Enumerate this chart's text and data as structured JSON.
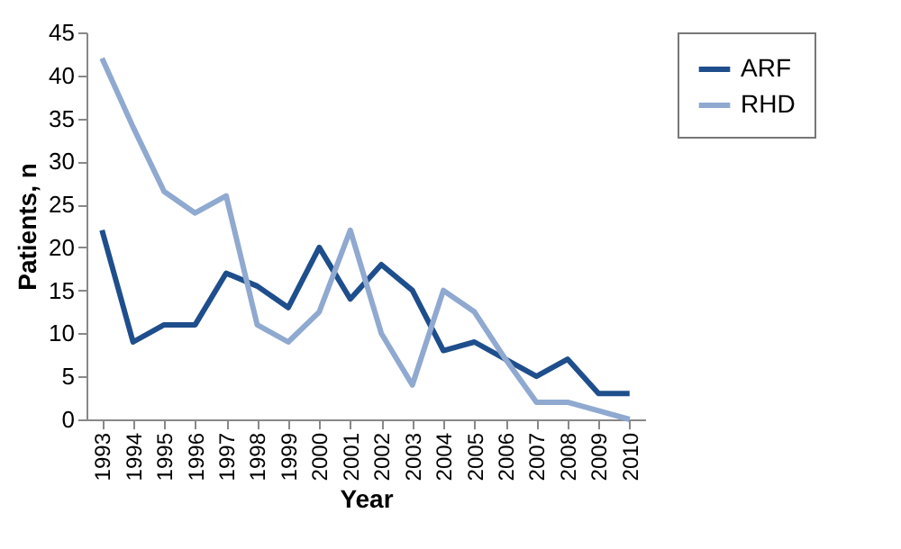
{
  "chart_data": {
    "type": "line",
    "xlabel": "Year",
    "ylabel": "Patients, n",
    "categories": [
      "1993",
      "1994",
      "1995",
      "1996",
      "1997",
      "1998",
      "1999",
      "2000",
      "2001",
      "2002",
      "2003",
      "2004",
      "2005",
      "2006",
      "2007",
      "2008",
      "2009",
      "2010"
    ],
    "series": [
      {
        "name": "ARF",
        "color": "#1f4e8c",
        "values": [
          22,
          9,
          11,
          11,
          17,
          15.5,
          13,
          20,
          14,
          18,
          15,
          8,
          9,
          7,
          5,
          7,
          3,
          3
        ]
      },
      {
        "name": "RHD",
        "color": "#8fa9d0",
        "values": [
          42,
          34,
          26.5,
          24,
          26,
          11,
          9,
          12.5,
          22,
          10,
          4,
          15,
          12.5,
          7,
          2,
          2,
          1,
          0
        ]
      }
    ],
    "ylim": [
      0,
      45
    ],
    "yticks": [
      0,
      5,
      10,
      15,
      20,
      25,
      30,
      35,
      40,
      45
    ],
    "grid": false,
    "legend": "right",
    "marker": "none",
    "line_style": "solid"
  }
}
